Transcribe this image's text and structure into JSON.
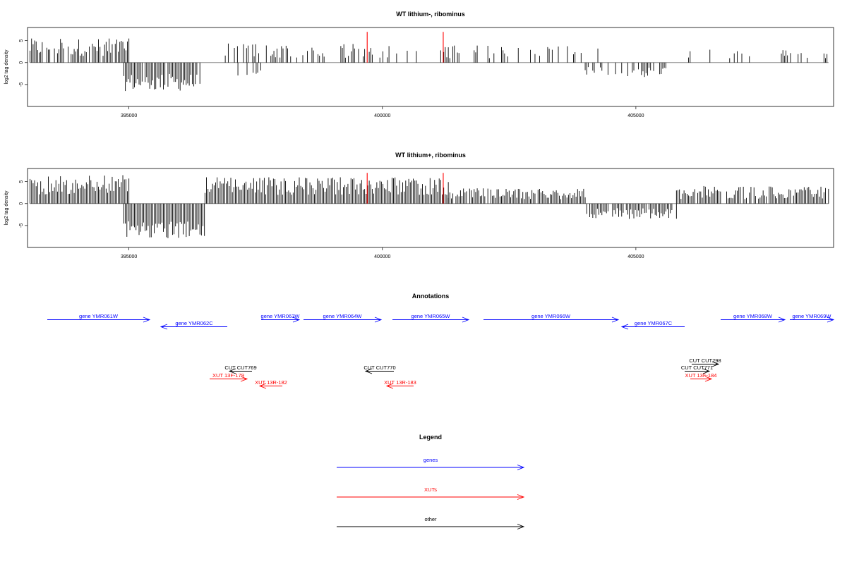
{
  "colors": {
    "gene": "#0000ff",
    "xut": "#ff0000",
    "other": "#000000",
    "marker": "#ff0000",
    "baseline": "#888888"
  },
  "chart_data": [
    {
      "type": "bar",
      "title": "WT lithium-, ribominus",
      "ylabel": "log2 tag density",
      "xlim": [
        393000,
        408900
      ],
      "ylim": [
        -10,
        8
      ],
      "xticks": [
        395000,
        400000,
        405000
      ],
      "yticks": [
        5,
        0,
        -5
      ],
      "markers": [
        399700,
        401200
      ],
      "segments": [
        {
          "from": 393050,
          "to": 395000,
          "lo": 1.5,
          "hi": 5.5,
          "density": 0.8
        },
        {
          "from": 394900,
          "to": 396400,
          "lo": -6.5,
          "hi": -2.5,
          "density": 0.95
        },
        {
          "from": 396900,
          "to": 399500,
          "lo": 1.0,
          "hi": 4.5,
          "density": 0.55
        },
        {
          "from": 397000,
          "to": 397600,
          "lo": -3.0,
          "hi": -0.5,
          "density": 0.2
        },
        {
          "from": 399500,
          "to": 403200,
          "lo": 1.0,
          "hi": 4.0,
          "density": 0.3
        },
        {
          "from": 403200,
          "to": 404300,
          "lo": 1.5,
          "hi": 4.0,
          "density": 0.25
        },
        {
          "from": 404000,
          "to": 405600,
          "lo": -3.5,
          "hi": -1.0,
          "density": 0.6
        },
        {
          "from": 405800,
          "to": 408800,
          "lo": 1.0,
          "hi": 3.0,
          "density": 0.15
        }
      ]
    },
    {
      "type": "bar",
      "title": "WT lithium+, ribominus",
      "ylabel": "log2 tag density",
      "xlim": [
        393000,
        408900
      ],
      "ylim": [
        -10,
        8
      ],
      "xticks": [
        395000,
        400000,
        405000
      ],
      "yticks": [
        5,
        0,
        -5
      ],
      "markers": [
        399700,
        401200
      ],
      "segments": [
        {
          "from": 393050,
          "to": 395000,
          "lo": 2.0,
          "hi": 6.5,
          "density": 1.0
        },
        {
          "from": 394900,
          "to": 396500,
          "lo": -8.0,
          "hi": -4.0,
          "density": 1.0
        },
        {
          "from": 396500,
          "to": 401300,
          "lo": 2.0,
          "hi": 6.0,
          "density": 1.0
        },
        {
          "from": 401300,
          "to": 404000,
          "lo": 1.0,
          "hi": 3.5,
          "density": 0.95
        },
        {
          "from": 404000,
          "to": 405800,
          "lo": -3.5,
          "hi": -1.0,
          "density": 0.8
        },
        {
          "from": 405800,
          "to": 408800,
          "lo": 1.0,
          "hi": 4.0,
          "density": 0.95
        }
      ]
    }
  ],
  "annotations": {
    "title": "Annotations",
    "genes": [
      {
        "label": "gene YMR061W",
        "dir": "right"
      },
      {
        "label": "gene YMR062C",
        "dir": "left"
      },
      {
        "label": "gene YMR063W",
        "dir": "right"
      },
      {
        "label": "gene YMR064W",
        "dir": "right"
      },
      {
        "label": "gene YMR065W",
        "dir": "right"
      },
      {
        "label": "gene YMR066W",
        "dir": "right"
      },
      {
        "label": "gene YMR067C",
        "dir": "left"
      },
      {
        "label": "gene YMR068W",
        "dir": "right"
      },
      {
        "label": "gene YMR069W",
        "dir": "right"
      }
    ],
    "cuts": [
      {
        "label": "CUT CUT769",
        "dir": "left"
      },
      {
        "label": "CUT CUT770",
        "dir": "left"
      },
      {
        "label": "CUT CUT298",
        "dir": "right"
      },
      {
        "label": "CUT CUT771",
        "dir": "right"
      }
    ],
    "xuts": [
      {
        "label": "XUT 13F-179",
        "dir": "right"
      },
      {
        "label": "XUT 13R-182",
        "dir": "left"
      },
      {
        "label": "XUT 13R-183",
        "dir": "left"
      },
      {
        "label": "XUT 13F-184",
        "dir": "right"
      }
    ]
  },
  "legend": {
    "title": "Legend",
    "items": [
      {
        "label": "genes",
        "color": "#0000ff"
      },
      {
        "label": "XUTs",
        "color": "#ff0000"
      },
      {
        "label": "other",
        "color": "#000000"
      }
    ]
  }
}
